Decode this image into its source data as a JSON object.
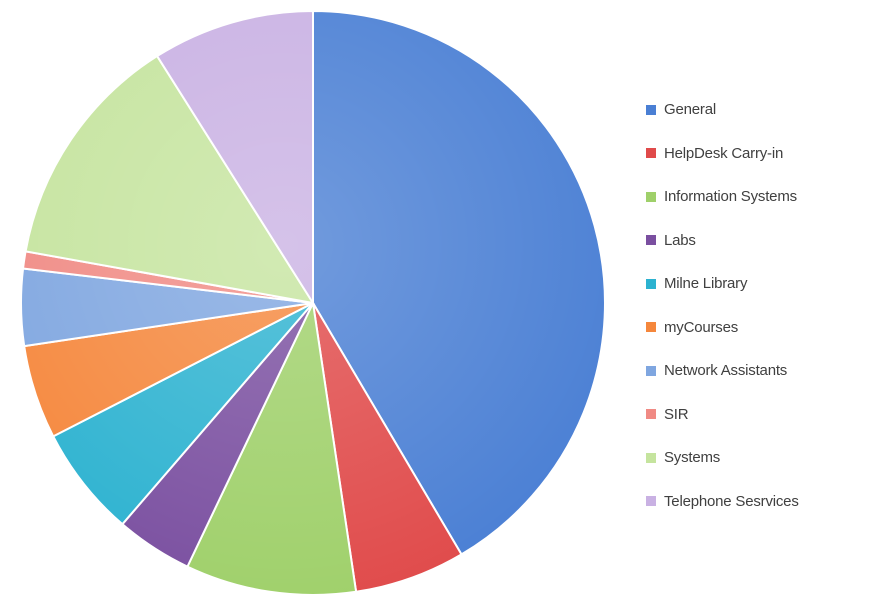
{
  "chart_data": {
    "type": "pie",
    "title": "",
    "legend_position": "right",
    "start_angle_deg": 0,
    "direction": "clockwise",
    "series": [
      {
        "categories": [
          "General",
          "HelpDesk Carry-in",
          "Information Systems",
          "Labs",
          "Milne Library",
          "myCourses",
          "Network Assistants",
          "SIR",
          "Systems",
          "Telephone Sesrvices"
        ],
        "values": [
          44.0,
          6.5,
          10.0,
          4.5,
          6.5,
          5.5,
          4.5,
          1.0,
          14.0,
          9.5
        ],
        "colors": [
          "#4a7fd4",
          "#e04a4a",
          "#9fd06a",
          "#7a4fa0",
          "#2cb2d0",
          "#f5873c",
          "#7fa6e0",
          "#f08a84",
          "#c5e49e",
          "#c9b1e3"
        ]
      }
    ],
    "legend": [
      {
        "label": "General",
        "color": "#4a7fd4"
      },
      {
        "label": "HelpDesk Carry-in",
        "color": "#e04a4a"
      },
      {
        "label": "Information Systems",
        "color": "#9fd06a"
      },
      {
        "label": "Labs",
        "color": "#7a4fa0"
      },
      {
        "label": "Milne Library",
        "color": "#2cb2d0"
      },
      {
        "label": "myCourses",
        "color": "#f5873c"
      },
      {
        "label": "Network Assistants",
        "color": "#7fa6e0"
      },
      {
        "label": "SIR",
        "color": "#f08a84"
      },
      {
        "label": "Systems",
        "color": "#c5e49e"
      },
      {
        "label": "Telephone Sesrvices",
        "color": "#c9b1e3"
      }
    ]
  }
}
